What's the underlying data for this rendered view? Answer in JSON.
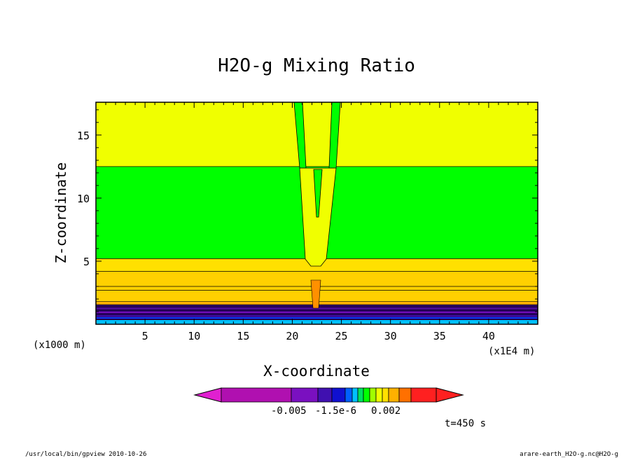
{
  "chart_data": {
    "type": "heatmap",
    "title": "H2O-g Mixing Ratio",
    "xlabel": "X-coordinate",
    "ylabel": "Z-coordinate",
    "x_unit": "(x1E4 m)",
    "y_unit": "(x1000 m)",
    "xlim": [
      0,
      45
    ],
    "ylim": [
      0,
      17.6
    ],
    "x_ticks": [
      5,
      10,
      15,
      20,
      25,
      30,
      35,
      40
    ],
    "x_tick_labels": [
      "5",
      "10",
      "15",
      "20",
      "25",
      "30",
      "35",
      "40"
    ],
    "y_ticks": [
      5,
      10,
      15
    ],
    "y_tick_labels": [
      "5",
      "10",
      "15"
    ],
    "colorbar": {
      "tick_labels": [
        "-0.005",
        "-1.5e-6",
        "0.002"
      ],
      "colors": [
        "#e020d0",
        "#b010b0",
        "#7a10c0",
        "#4010b0",
        "#1010d0",
        "#0060ff",
        "#00c0ff",
        "#00e060",
        "#00ff00",
        "#a0ff00",
        "#f0ff00",
        "#ffe000",
        "#ffb000",
        "#ff7000",
        "#ff2020"
      ]
    },
    "bands": [
      {
        "z_range": [
          12.5,
          17.6
        ],
        "color": "#f0ff00"
      },
      {
        "z_range": [
          5.2,
          12.5
        ],
        "color": "#00ff00"
      },
      {
        "z_range": [
          4.2,
          5.2
        ],
        "color": "#ffe000"
      },
      {
        "z_range": [
          1.8,
          4.2
        ],
        "color": "#ffd000"
      },
      {
        "z_range": [
          1.55,
          1.8
        ],
        "color": "#ffb000"
      },
      {
        "z_range": [
          0.35,
          1.55
        ],
        "color": "#300070"
      },
      {
        "z_range": [
          0.0,
          0.35
        ],
        "color": "#00c0ff"
      }
    ],
    "plume_x": 22.5,
    "time_label": "t=450 s"
  },
  "footer": {
    "left": "/usr/local/bin/gpview  2010-10-26",
    "right": "arare-earth_H2O-g.nc@H2O-g"
  }
}
